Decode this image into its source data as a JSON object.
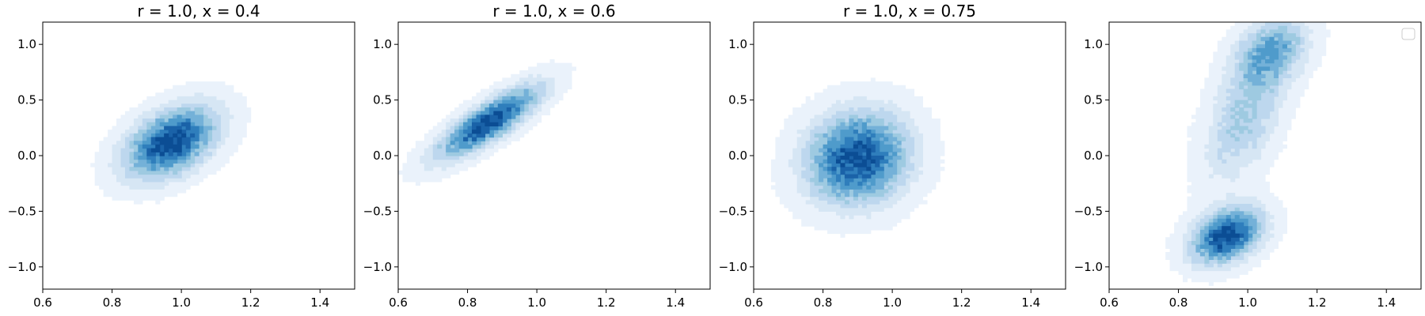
{
  "chart_data": [
    {
      "type": "kde-contour",
      "title": "r = 1.0, x = 0.4",
      "xlim": [
        0.6,
        1.5
      ],
      "ylim": [
        -1.2,
        1.2
      ],
      "xticks": [
        0.6,
        0.8,
        1.0,
        1.2,
        1.4
      ],
      "xtick_labels": [
        "0.6",
        "0.8",
        "1.0",
        "1.2",
        "1.4"
      ],
      "yticks": [
        -1.0,
        -0.5,
        0.0,
        0.5,
        1.0
      ],
      "ytick_labels": [
        "−1.0",
        "−0.5",
        "0.0",
        "0.5",
        "1.0"
      ],
      "colormap": "Blues",
      "levels": 9,
      "density_components": [
        {
          "mean": [
            0.97,
            0.12
          ],
          "sd": [
            0.09,
            0.22
          ],
          "corr": 0.45,
          "weight": 1.0
        }
      ],
      "legend": false
    },
    {
      "type": "kde-contour",
      "title": "r = 1.0, x = 0.6",
      "xlim": [
        0.6,
        1.5
      ],
      "ylim": [
        -1.2,
        1.2
      ],
      "xticks": [
        0.6,
        0.8,
        1.0,
        1.2,
        1.4
      ],
      "xtick_labels": [
        "0.6",
        "0.8",
        "1.0",
        "1.2",
        "1.4"
      ],
      "yticks": [
        -1.0,
        -0.5,
        0.0,
        0.5,
        1.0
      ],
      "ytick_labels": [
        "−1.0",
        "−0.5",
        "0.0",
        "0.5",
        "1.0"
      ],
      "colormap": "Blues",
      "levels": 9,
      "density_components": [
        {
          "mean": [
            0.86,
            0.3
          ],
          "sd": [
            0.1,
            0.22
          ],
          "corr": 0.82,
          "weight": 1.0
        }
      ],
      "legend": false
    },
    {
      "type": "kde-contour",
      "title": "r = 1.0, x = 0.75",
      "xlim": [
        0.6,
        1.5
      ],
      "ylim": [
        -1.2,
        1.2
      ],
      "xticks": [
        0.6,
        0.8,
        1.0,
        1.2,
        1.4
      ],
      "xtick_labels": [
        "0.6",
        "0.8",
        "1.0",
        "1.2",
        "1.4"
      ],
      "yticks": [
        -1.0,
        -0.5,
        0.0,
        0.5,
        1.0
      ],
      "ytick_labels": [
        "−1.0",
        "−0.5",
        "0.0",
        "0.5",
        "1.0"
      ],
      "colormap": "Blues",
      "levels": 9,
      "density_components": [
        {
          "mean": [
            0.9,
            -0.02
          ],
          "sd": [
            0.1,
            0.28
          ],
          "corr": 0.1,
          "weight": 1.0
        }
      ],
      "legend": false
    },
    {
      "type": "kde-contour",
      "title": "",
      "xlim": [
        0.6,
        1.5
      ],
      "ylim": [
        -1.2,
        1.2
      ],
      "xticks": [
        0.6,
        0.8,
        1.0,
        1.2,
        1.4
      ],
      "xtick_labels": [
        "0.6",
        "0.8",
        "1.0",
        "1.2",
        "1.4"
      ],
      "yticks": [
        -1.0,
        -0.5,
        0.0,
        0.5,
        1.0
      ],
      "ytick_labels": [
        "−1.0",
        "−0.5",
        "0.0",
        "0.5",
        "1.0"
      ],
      "colormap": "Blues",
      "levels": 9,
      "density_components": [
        {
          "mean": [
            0.94,
            -0.72
          ],
          "sd": [
            0.07,
            0.17
          ],
          "corr": 0.35,
          "weight": 1.0
        },
        {
          "mean": [
            0.99,
            0.35
          ],
          "sd": [
            0.08,
            0.4
          ],
          "corr": 0.5,
          "weight": 0.42
        },
        {
          "mean": [
            1.07,
            0.95
          ],
          "sd": [
            0.07,
            0.2
          ],
          "corr": 0.3,
          "weight": 0.55
        }
      ],
      "legend": true,
      "legend_position": "top-right"
    }
  ]
}
